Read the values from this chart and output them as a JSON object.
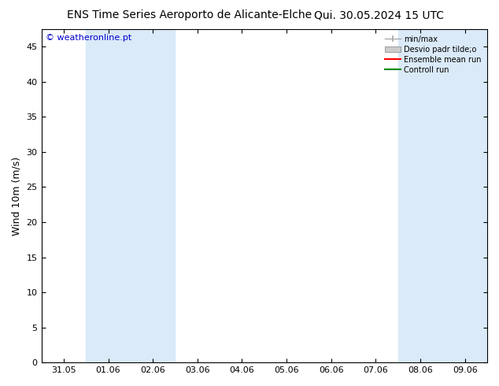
{
  "title_left": "ENS Time Series Aeroporto de Alicante-Elche",
  "title_right": "Qui. 30.05.2024 15 UTC",
  "ylabel": "Wind 10m (m/s)",
  "watermark": "© weatheronline.pt",
  "ylim": [
    0,
    47.5
  ],
  "yticks": [
    0,
    5,
    10,
    15,
    20,
    25,
    30,
    35,
    40,
    45
  ],
  "xtick_labels": [
    "31.05",
    "01.06",
    "02.06",
    "03.06",
    "04.06",
    "05.06",
    "06.06",
    "07.06",
    "08.06",
    "09.06"
  ],
  "xtick_positions": [
    0,
    1,
    2,
    3,
    4,
    5,
    6,
    7,
    8,
    9
  ],
  "xlim": [
    -0.5,
    9.5
  ],
  "shaded_bands": [
    [
      0.5,
      1.5
    ],
    [
      1.5,
      2.5
    ],
    [
      7.5,
      8.5
    ],
    [
      8.5,
      9.5
    ]
  ],
  "band_color": "#daeaf8",
  "background_color": "#ffffff",
  "watermark_color": "#0000cc",
  "title_fontsize": 10,
  "ylabel_fontsize": 9,
  "tick_fontsize": 8,
  "legend_label_minmax": "min/max",
  "legend_label_desvio": "Desvio padr tilde;o",
  "legend_label_ensemble": "Ensemble mean run",
  "legend_label_control": "Controll run",
  "legend_color_minmax": "#aaaaaa",
  "legend_color_desvio": "#cccccc",
  "legend_color_ensemble": "#ff0000",
  "legend_color_control": "#008800"
}
